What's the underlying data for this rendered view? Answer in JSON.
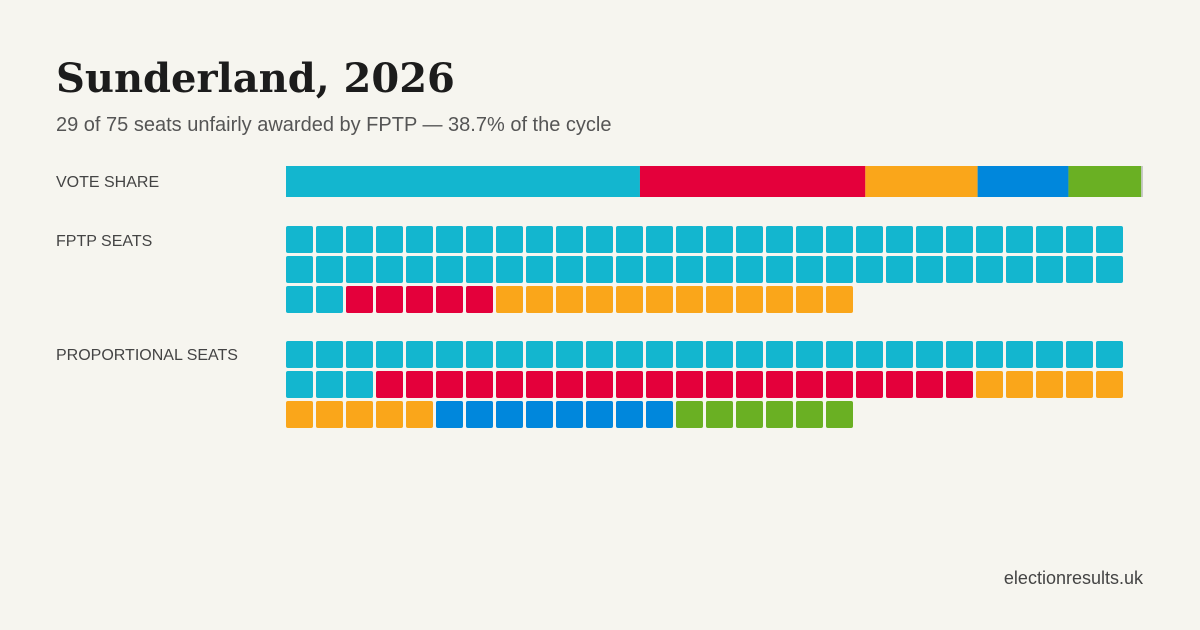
{
  "chart_data": {
    "type": "waffle",
    "title": "Sunderland, 2026",
    "subtitle": "29 of 75 seats unfairly awarded by FPTP — 38.7% of the cycle",
    "vote_label": "VOTE SHARE",
    "fptp_label": "FPTP SEATS",
    "proportional_label": "PROPORTIONAL SEATS",
    "xlim": [
      0,
      100
    ],
    "per_row": 28,
    "parties": [
      {
        "color": "#13b6cf",
        "vote_share": 41.3,
        "fptp_seats": 58,
        "proportional_seats": 31
      },
      {
        "color": "#e4003b",
        "vote_share": 26.3,
        "fptp_seats": 5,
        "proportional_seats": 20
      },
      {
        "color": "#faa61a",
        "vote_share": 13.1,
        "fptp_seats": 12,
        "proportional_seats": 10
      },
      {
        "color": "#0087dc",
        "vote_share": 10.6,
        "fptp_seats": 0,
        "proportional_seats": 8
      },
      {
        "color": "#6ab023",
        "vote_share": 8.5,
        "fptp_seats": 0,
        "proportional_seats": 6
      },
      {
        "color": "#c8c8c8",
        "vote_share": 0.2,
        "fptp_seats": 0,
        "proportional_seats": 0
      }
    ],
    "footer": "electionresults.uk"
  }
}
